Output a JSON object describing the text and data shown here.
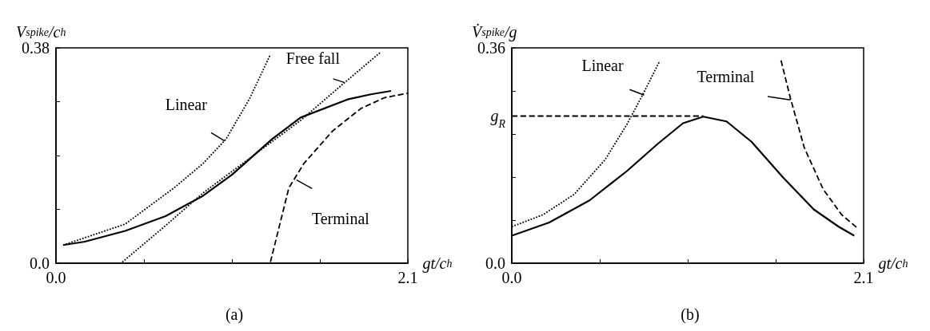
{
  "chart_data": [
    {
      "type": "line",
      "xlabel": "gt/c$_{h}$",
      "ylabel": "V$_{spike}$/c$_{h}$",
      "xlim": [
        0,
        2.1
      ],
      "xticks": [
        {
          "value": 0,
          "label": "0.0"
        },
        {
          "value": 0.525,
          "label": null
        },
        {
          "value": 1.05,
          "label": null
        },
        {
          "value": 1.575,
          "label": null
        },
        2.1
      ],
      "ylim": [
        0,
        0.38
      ],
      "yticks": [
        {
          "value": 0,
          "label": "0.0"
        },
        {
          "value": 0.095,
          "label": null
        },
        {
          "value": 0.19,
          "label": null
        },
        {
          "value": 0.285,
          "label": null
        },
        0.38
      ],
      "grid": false,
      "series": [
        {
          "color": "#000000",
          "line_style": "solid",
          "x": [
            0.043,
            0.172,
            0.413,
            0.654,
            0.878,
            1.05,
            1.29,
            1.46,
            1.74,
            1.88,
            2.0
          ],
          "values": [
            0.032,
            0.038,
            0.057,
            0.083,
            0.119,
            0.156,
            0.219,
            0.257,
            0.289,
            0.298,
            0.304
          ]
        },
        {
          "color": "#000000",
          "line_style": "dotted",
          "x": [
            0.043,
            0.413,
            0.705,
            0.878,
            1.015,
            1.155,
            1.276
          ],
          "values": [
            0.032,
            0.069,
            0.133,
            0.176,
            0.219,
            0.29,
            0.366
          ]
        },
        {
          "color": "#000000",
          "line_style": "dotted",
          "x": [
            0.396,
            0.637,
            0.878,
            1.46,
            1.72,
            1.94
          ],
          "values": [
            0.002,
            0.062,
            0.124,
            0.252,
            0.318,
            0.373
          ]
        },
        {
          "color": "#000000",
          "line_style": "dashed",
          "x": [
            1.28,
            1.39,
            1.48,
            1.65,
            1.82,
            1.96,
            2.1
          ],
          "values": [
            0.002,
            0.133,
            0.176,
            0.233,
            0.273,
            0.292,
            0.3
          ]
        }
      ],
      "annotations": [
        {
          "text": "Linear",
          "x": 1.006,
          "y": 0.216
        },
        {
          "text": "Free fall",
          "x": 1.72,
          "y": 0.319
        },
        {
          "text": "Terminal",
          "x": 1.436,
          "y": 0.147
        },
        "(a)"
      ]
    },
    {
      "type": "line",
      "xlabel": "gt/c$_{h}$",
      "ylabel": "V̇$_{spike}$/g",
      "xlim": [
        0,
        2.1
      ],
      "xticks": [
        {
          "value": 0,
          "label": "0.0"
        },
        {
          "value": 0.525,
          "label": null
        },
        {
          "value": 1.05,
          "label": null
        },
        {
          "value": 1.575,
          "label": null
        },
        2.1
      ],
      "ylim": [
        0,
        0.36
      ],
      "yticks": [
        {
          "value": 0,
          "label": "0.0"
        },
        {
          "value": 0.072,
          "label": null
        },
        {
          "value": 0.144,
          "label": null
        },
        {
          "value": 0.216,
          "label": null
        },
        {
          "value": 0.246,
          "label": "g$_{R}$"
        },
        {
          "value": 0.288,
          "label": null
        },
        0.36
      ],
      "grid": false,
      "series": [
        {
          "color": "#000000",
          "line_style": "solid",
          "x": [
            0,
            0.223,
            0.464,
            0.687,
            0.873,
            1.022,
            1.143,
            1.282,
            1.431,
            1.617,
            1.802,
            1.951,
            2.044
          ],
          "values": [
            0.046,
            0.068,
            0.105,
            0.154,
            0.2,
            0.234,
            0.245,
            0.237,
            0.203,
            0.144,
            0.09,
            0.061,
            0.046
          ]
        },
        {
          "color": "#000000",
          "line_style": "dotted",
          "x": [
            0,
            0.186,
            0.372,
            0.557,
            0.687,
            0.78,
            0.883
          ],
          "values": [
            0.061,
            0.081,
            0.115,
            0.173,
            0.232,
            0.281,
            0.338
          ]
        },
        {
          "color": "#000000",
          "line_style": "dashed",
          "x": [
            1.607,
            1.663,
            1.746,
            1.858,
            1.969,
            2.062
          ],
          "values": [
            0.339,
            0.276,
            0.193,
            0.124,
            0.081,
            0.059
          ]
        },
        {
          "color": "#000000",
          "line_style": "dashed",
          "x": [
            0,
            1.143
          ],
          "values": [
            0.246,
            0.246
          ]
        }
      ],
      "annotations": [
        {
          "text": "Linear",
          "x": 0.79,
          "y": 0.281
        },
        {
          "text": "Terminal",
          "x": 1.663,
          "y": 0.273
        },
        "(b)"
      ]
    }
  ]
}
